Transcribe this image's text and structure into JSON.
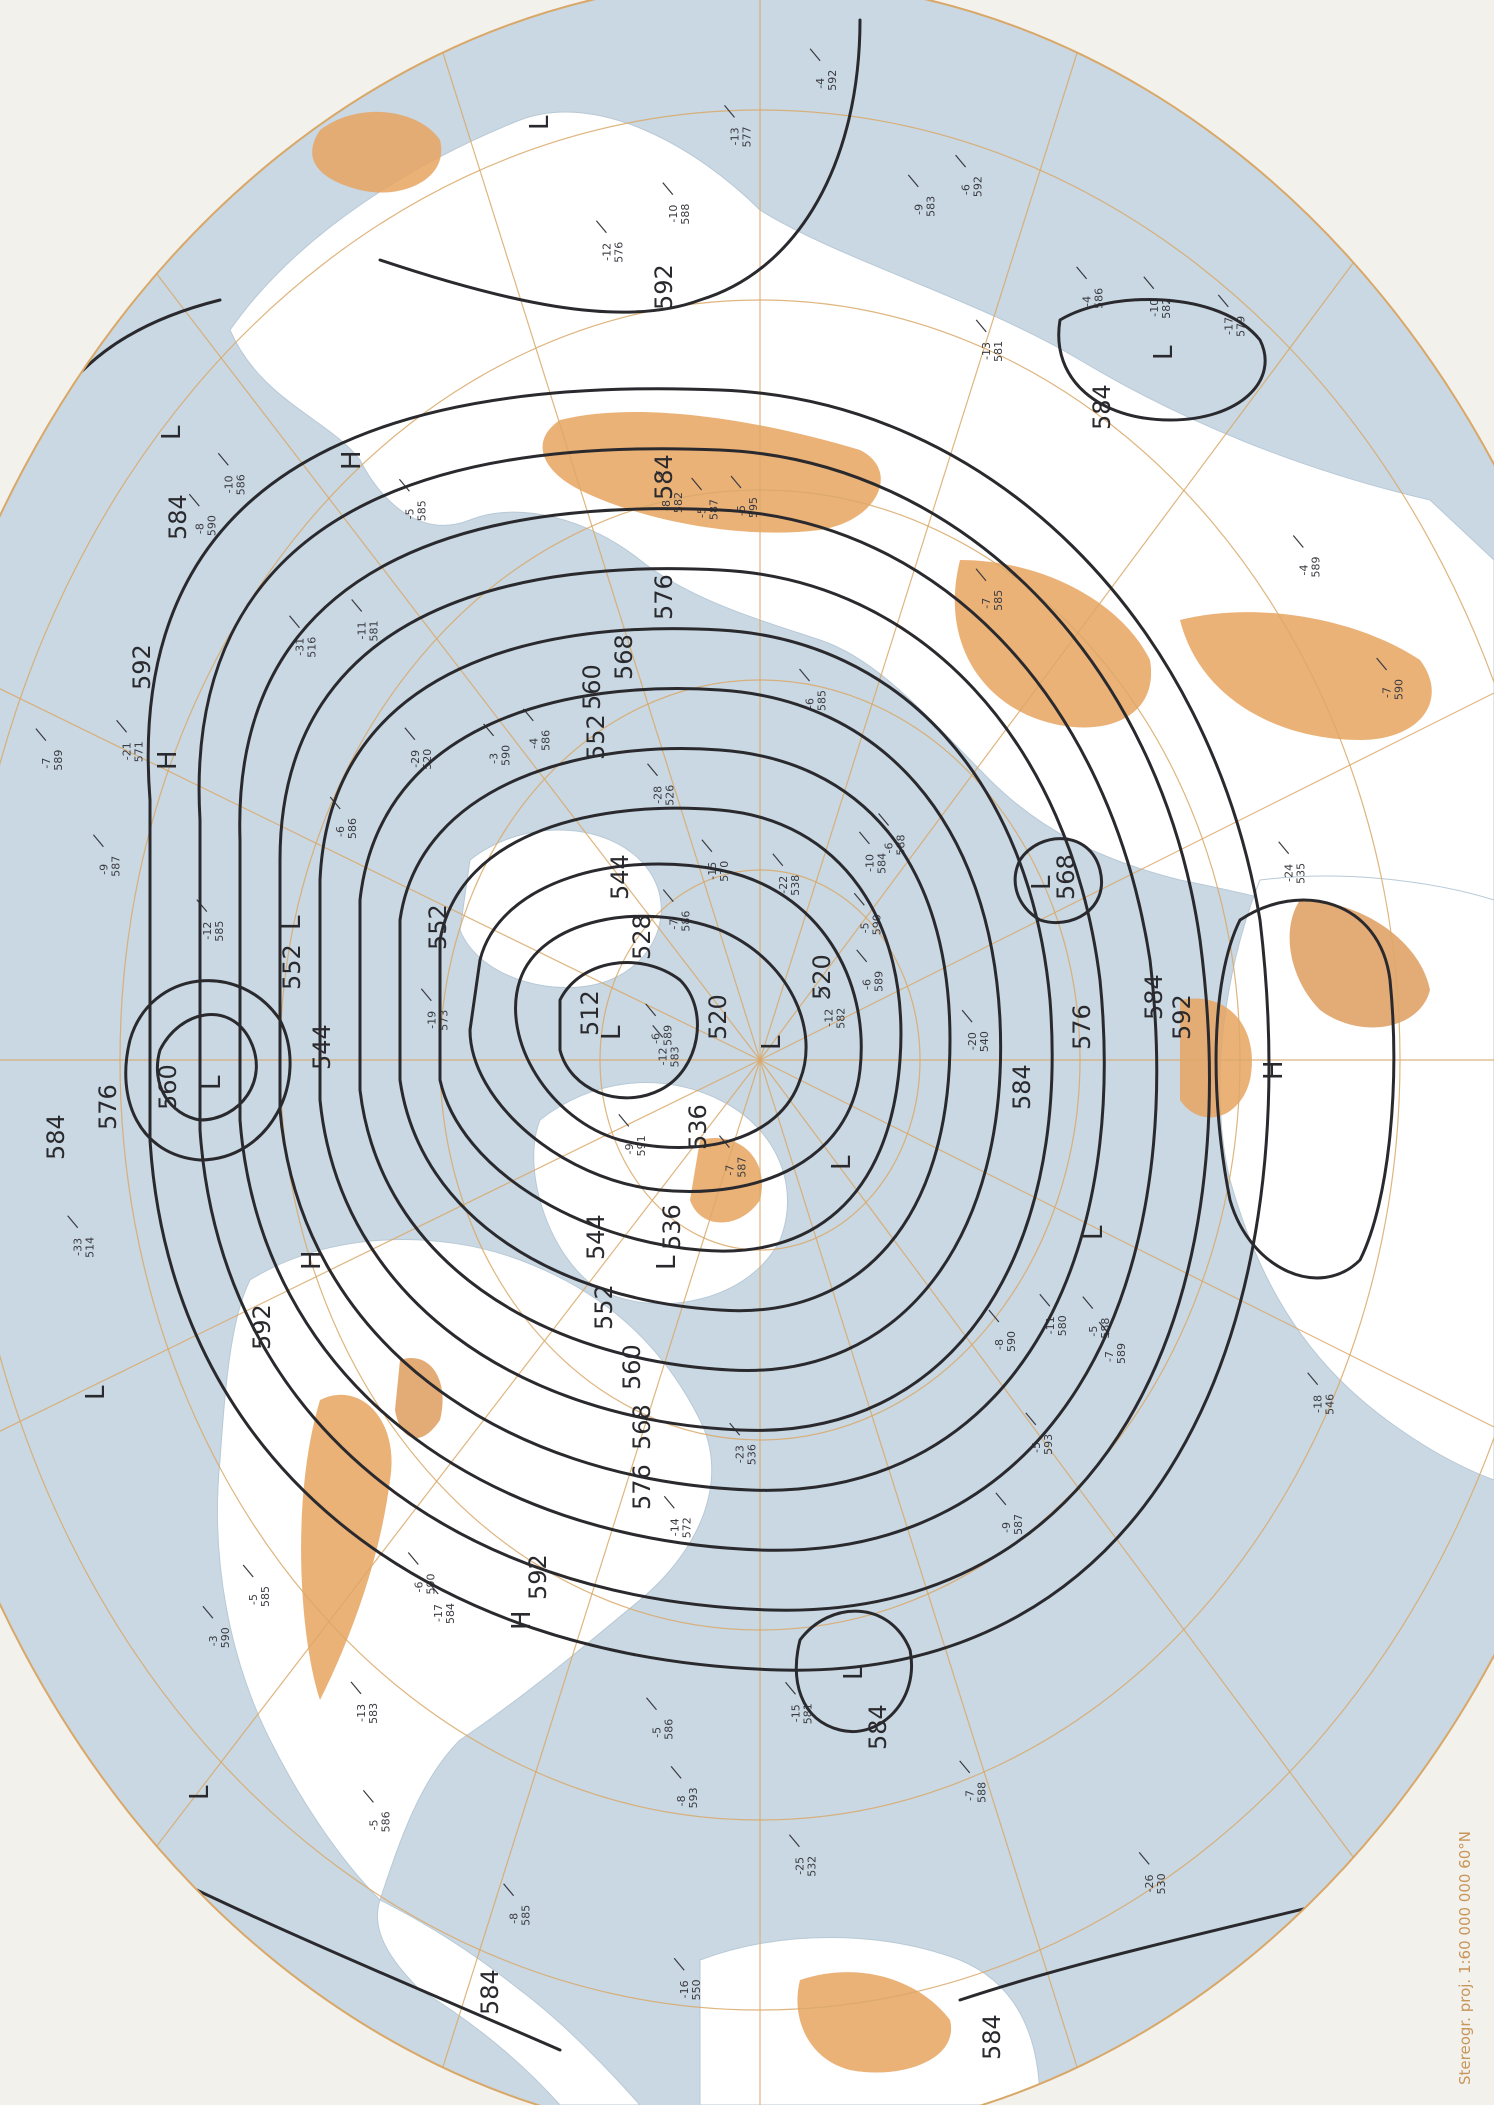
{
  "map": {
    "type": "upper-air analysis chart (500 hPa heights), polar stereographic",
    "projection_note": "Stereogr. proj.  1:60 000 000   60°N",
    "colors": {
      "ocean": "#c9d8e3",
      "land": "#ffffff",
      "relief": "#e7a560",
      "grid": "#d9a868",
      "contour": "#2a2a2e",
      "paper": "#f3f1ec"
    },
    "contour_values": [
      "512",
      "520",
      "528",
      "536",
      "544",
      "552",
      "560",
      "568",
      "576",
      "584",
      "592"
    ],
    "contour_labels": [
      {
        "id": "c512",
        "text": "512"
      },
      {
        "id": "c520a",
        "text": "520"
      },
      {
        "id": "c520b",
        "text": "520"
      },
      {
        "id": "c528",
        "text": "528"
      },
      {
        "id": "c536a",
        "text": "536"
      },
      {
        "id": "c536b",
        "text": "536"
      },
      {
        "id": "c544a",
        "text": "544"
      },
      {
        "id": "c544b",
        "text": "544"
      },
      {
        "id": "c544c",
        "text": "544"
      },
      {
        "id": "c552a",
        "text": "552"
      },
      {
        "id": "c552b",
        "text": "552"
      },
      {
        "id": "c552c",
        "text": "552"
      },
      {
        "id": "c552d",
        "text": "552"
      },
      {
        "id": "c560a",
        "text": "560"
      },
      {
        "id": "c560b",
        "text": "560"
      },
      {
        "id": "c560c",
        "text": "560"
      },
      {
        "id": "c568a",
        "text": "568"
      },
      {
        "id": "c568b",
        "text": "568"
      },
      {
        "id": "c568c",
        "text": "568"
      },
      {
        "id": "c576a",
        "text": "576"
      },
      {
        "id": "c576b",
        "text": "576"
      },
      {
        "id": "c576c",
        "text": "576"
      },
      {
        "id": "c576d",
        "text": "576"
      },
      {
        "id": "c584a",
        "text": "584"
      },
      {
        "id": "c584b",
        "text": "584"
      },
      {
        "id": "c584c",
        "text": "584"
      },
      {
        "id": "c584d",
        "text": "584"
      },
      {
        "id": "c584e",
        "text": "584"
      },
      {
        "id": "c584f",
        "text": "584"
      },
      {
        "id": "c584g",
        "text": "584"
      },
      {
        "id": "c584h",
        "text": "584"
      },
      {
        "id": "c584i",
        "text": "584"
      },
      {
        "id": "c592a",
        "text": "592"
      },
      {
        "id": "c592b",
        "text": "592"
      },
      {
        "id": "c592c",
        "text": "592"
      },
      {
        "id": "c592d",
        "text": "592"
      },
      {
        "id": "c592e",
        "text": "592"
      }
    ],
    "centers": [
      {
        "id": "L1",
        "text": "L"
      },
      {
        "id": "L2",
        "text": "L"
      },
      {
        "id": "L3",
        "text": "L"
      },
      {
        "id": "L4",
        "text": "L"
      },
      {
        "id": "L5",
        "text": "L"
      },
      {
        "id": "L6",
        "text": "L"
      },
      {
        "id": "L7",
        "text": "L"
      },
      {
        "id": "L8",
        "text": "L"
      },
      {
        "id": "L9",
        "text": "L"
      },
      {
        "id": "L10",
        "text": "L"
      },
      {
        "id": "L11",
        "text": "L"
      },
      {
        "id": "L12",
        "text": "L"
      },
      {
        "id": "L13",
        "text": "L"
      },
      {
        "id": "L14",
        "text": "L"
      },
      {
        "id": "H1",
        "text": "H"
      },
      {
        "id": "H2",
        "text": "H"
      },
      {
        "id": "H3",
        "text": "H"
      },
      {
        "id": "H4",
        "text": "H"
      },
      {
        "id": "H5",
        "text": "H"
      }
    ],
    "station_samples": [
      "-7 587",
      "-8 590",
      "-12 583",
      "-10 584",
      "-17 584",
      "-6 592",
      "-5 595",
      "-13 581",
      "-12 582",
      "-12 585",
      "-9 591",
      "-7 585",
      "-8 582",
      "-6 585",
      "-5 585",
      "-4 586",
      "-5 586",
      "-5 587",
      "-6 588",
      "-7 589",
      "-10 586",
      "-10 588",
      "-9 587",
      "-8 590",
      "-7 590",
      "-6 589",
      "-5 586",
      "-7 586",
      "-5 585",
      "-4 586",
      "-6 590",
      "-5 588",
      "-4 592",
      "-3 590",
      "-6 586",
      "-9 587",
      "-7 589",
      "-5 590",
      "-8 593",
      "-6 589",
      "-3 590",
      "-4 589",
      "-5 593",
      "-7 588",
      "-13 583",
      "-15 581",
      "-17 579",
      "-13 577",
      "-19 573",
      "-21 571",
      "-11 581",
      "-10 582",
      "-9 583",
      "-12 576",
      "-15 570",
      "-14 572",
      "-8 585",
      "-11 580",
      "-29 520",
      "-31 516",
      "-33 514",
      "-28 526",
      "-25 532",
      "-22 538",
      "-20 540",
      "-18 546",
      "-16 550",
      "-24 535",
      "-23 536",
      "-26 530"
    ]
  }
}
